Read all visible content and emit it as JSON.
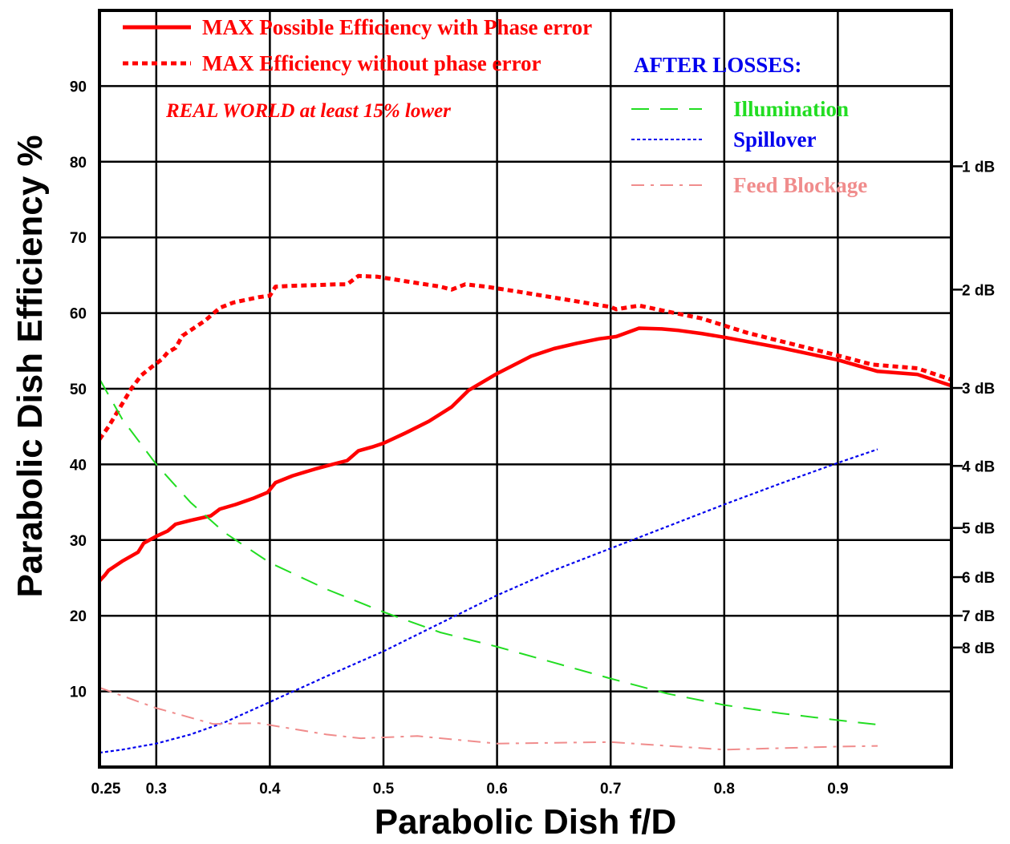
{
  "chart_data": {
    "type": "line",
    "xlabel": "Parabolic Dish f/D",
    "ylabel": "Parabolic Dish Efficiency %",
    "xlim": [
      0.25,
      1.0
    ],
    "ylim": [
      0,
      100
    ],
    "x_ticks": [
      0.25,
      0.3,
      0.4,
      0.5,
      0.6,
      0.7,
      0.8,
      0.9
    ],
    "x_tick_labels": [
      "0.25",
      "0.3",
      "0.4",
      "0.5",
      "0.6",
      "0.7",
      "0.8",
      "0.9"
    ],
    "x_gridlines": [
      0.3,
      0.4,
      0.5,
      0.6,
      0.7,
      0.8,
      0.9
    ],
    "y_ticks": [
      10,
      20,
      30,
      40,
      50,
      60,
      70,
      80,
      90
    ],
    "y_tick_labels": [
      "10",
      "20",
      "30",
      "40",
      "50",
      "60",
      "70",
      "80",
      "90"
    ],
    "y_gridlines": [
      10,
      20,
      30,
      40,
      50,
      60,
      70,
      80,
      90
    ],
    "grid": true,
    "secondary_axis": {
      "side": "right",
      "ticks": [
        {
          "value": 79.4,
          "label": "1 dB"
        },
        {
          "value": 63.1,
          "label": "2 dB"
        },
        {
          "value": 50.1,
          "label": "3 dB"
        },
        {
          "value": 39.8,
          "label": "4 dB"
        },
        {
          "value": 31.6,
          "label": "5 dB"
        },
        {
          "value": 25.1,
          "label": "6 dB"
        },
        {
          "value": 20.0,
          "label": "7 dB"
        },
        {
          "value": 15.8,
          "label": "8 dB"
        }
      ]
    },
    "legend": {
      "main": [
        {
          "label": "MAX Possible Efficiency with Phase error",
          "color": "#ff0000",
          "style": "solid"
        },
        {
          "label": "MAX Efficiency without phase error",
          "color": "#ff0000",
          "style": "dotted"
        }
      ],
      "note": "REAL WORLD at least 15% lower",
      "losses_title": "AFTER LOSSES:",
      "losses_title_color": "#0000ee",
      "losses": [
        {
          "label": "Illumination",
          "color": "#22dd22",
          "style": "dashed"
        },
        {
          "label": "Spillover",
          "color": "#0000ee",
          "style": "dotted"
        },
        {
          "label": "Feed Blockage",
          "color": "#f08c8c",
          "style": "dashdot"
        }
      ]
    },
    "series": [
      {
        "name": "MAX Possible Efficiency with Phase error",
        "color": "#ff0000",
        "style": "solid",
        "x": [
          0.25,
          0.255,
          0.258,
          0.27,
          0.284,
          0.289,
          0.3,
          0.31,
          0.317,
          0.33,
          0.348,
          0.356,
          0.37,
          0.385,
          0.398,
          0.405,
          0.42,
          0.44,
          0.46,
          0.468,
          0.478,
          0.49,
          0.5,
          0.52,
          0.54,
          0.56,
          0.575,
          0.6,
          0.63,
          0.65,
          0.67,
          0.69,
          0.705,
          0.725,
          0.745,
          0.76,
          0.78,
          0.8,
          0.85,
          0.9,
          0.935,
          0.97,
          1.0
        ],
        "y": [
          24.6,
          25.4,
          26,
          27.2,
          28.4,
          29.6,
          30.5,
          31.2,
          32.1,
          32.6,
          33.2,
          34.1,
          34.7,
          35.5,
          36.3,
          37.6,
          38.5,
          39.4,
          40.2,
          40.5,
          41.8,
          42.3,
          42.8,
          44.2,
          45.7,
          47.6,
          49.8,
          52,
          54.3,
          55.3,
          56,
          56.6,
          56.9,
          58.0,
          57.9,
          57.7,
          57.3,
          56.8,
          55.4,
          53.8,
          52.3,
          51.9,
          50.4
        ]
      },
      {
        "name": "MAX Efficiency without phase error",
        "color": "#ff0000",
        "style": "dotted",
        "x": [
          0.25,
          0.258,
          0.268,
          0.278,
          0.287,
          0.297,
          0.305,
          0.31,
          0.317,
          0.323,
          0.343,
          0.356,
          0.368,
          0.39,
          0.4,
          0.405,
          0.42,
          0.44,
          0.46,
          0.468,
          0.478,
          0.495,
          0.52,
          0.55,
          0.56,
          0.572,
          0.59,
          0.62,
          0.66,
          0.7,
          0.705,
          0.725,
          0.75,
          0.78,
          0.82,
          0.86,
          0.9,
          0.93,
          0.97,
          1.0
        ],
        "y": [
          43.3,
          45,
          47.5,
          50,
          51.8,
          53,
          53.9,
          54.8,
          55.4,
          57,
          59,
          60.7,
          61.4,
          62.1,
          62.3,
          63.5,
          63.6,
          63.7,
          63.8,
          63.8,
          64.9,
          64.8,
          64.2,
          63.5,
          63.1,
          63.8,
          63.5,
          62.8,
          61.8,
          60.8,
          60.5,
          61.0,
          60.2,
          59.3,
          57.4,
          55.9,
          54.4,
          53.2,
          52.7,
          51.2
        ]
      },
      {
        "name": "Illumination",
        "color": "#22dd22",
        "style": "dashed",
        "x": [
          0.25,
          0.27,
          0.3,
          0.33,
          0.36,
          0.4,
          0.45,
          0.5,
          0.55,
          0.6,
          0.65,
          0.7,
          0.75,
          0.8,
          0.85,
          0.9,
          0.935
        ],
        "y": [
          51.3,
          46,
          40,
          35,
          31,
          27,
          23.5,
          20.5,
          17.8,
          15.9,
          13.8,
          11.7,
          9.7,
          8.2,
          7.1,
          6.2,
          5.6
        ]
      },
      {
        "name": "Spillover",
        "color": "#0000ee",
        "style": "dotted",
        "x": [
          0.25,
          0.27,
          0.3,
          0.33,
          0.36,
          0.4,
          0.45,
          0.5,
          0.55,
          0.6,
          0.65,
          0.7,
          0.75,
          0.8,
          0.85,
          0.9,
          0.935
        ],
        "y": [
          1.9,
          2.3,
          3.1,
          4.3,
          5.9,
          8.6,
          12,
          15.3,
          19,
          22.7,
          26,
          28.9,
          31.8,
          34.7,
          37.5,
          40.2,
          42
        ]
      },
      {
        "name": "Feed Blockage",
        "color": "#f08c8c",
        "style": "dashdot",
        "x": [
          0.25,
          0.3,
          0.35,
          0.39,
          0.45,
          0.48,
          0.53,
          0.6,
          0.7,
          0.8,
          0.9,
          0.935
        ],
        "y": [
          10.5,
          7.8,
          5.7,
          5.8,
          4.3,
          3.8,
          4.1,
          3.1,
          3.3,
          2.3,
          2.7,
          2.8
        ]
      }
    ]
  }
}
